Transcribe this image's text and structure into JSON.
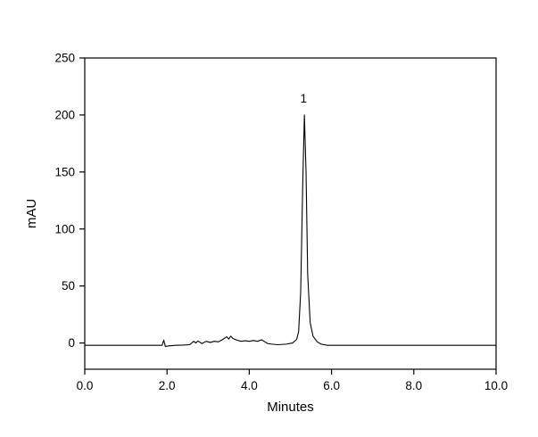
{
  "page": {
    "background": "#ffffff"
  },
  "chart_data": {
    "type": "line",
    "title": "",
    "xlabel": "Minutes",
    "ylabel": "mAU",
    "xlim": [
      0,
      10
    ],
    "ylim": [
      -23,
      250
    ],
    "grid": false,
    "legend": "none",
    "frame": true,
    "line_color": "#000000",
    "background_color": "#ffffff",
    "xticks": [
      {
        "value": 0,
        "label": "0.0"
      },
      {
        "value": 2,
        "label": "2.0"
      },
      {
        "value": 4,
        "label": "4.0"
      },
      {
        "value": 6,
        "label": "6.0"
      },
      {
        "value": 8,
        "label": "8.0"
      },
      {
        "value": 10,
        "label": "10.0"
      }
    ],
    "yticks": [
      {
        "value": 0,
        "label": "0"
      },
      {
        "value": 50,
        "label": "50"
      },
      {
        "value": 100,
        "label": "100"
      },
      {
        "value": 150,
        "label": "150"
      },
      {
        "value": 200,
        "label": "200"
      },
      {
        "value": 250,
        "label": "250"
      }
    ],
    "series": [
      {
        "name": "detector-signal",
        "x": [
          0.0,
          0.5,
          1.0,
          1.5,
          1.8,
          1.88,
          1.92,
          1.96,
          2.05,
          2.2,
          2.4,
          2.55,
          2.65,
          2.7,
          2.75,
          2.85,
          2.95,
          3.05,
          3.15,
          3.25,
          3.35,
          3.45,
          3.5,
          3.55,
          3.6,
          3.7,
          3.8,
          3.9,
          4.0,
          4.1,
          4.2,
          4.3,
          4.38,
          4.45,
          4.55,
          4.7,
          4.9,
          5.05,
          5.15,
          5.2,
          5.25,
          5.3,
          5.34,
          5.38,
          5.42,
          5.48,
          5.55,
          5.65,
          5.75,
          5.9,
          6.2,
          6.6,
          7.0,
          7.5,
          8.0,
          8.5,
          9.0,
          9.5,
          10.0
        ],
        "y": [
          -2,
          -2,
          -2,
          -2,
          -2,
          -2,
          2.5,
          -3,
          -2.5,
          -2,
          -1.8,
          -1.5,
          1.5,
          0,
          1.8,
          -0.5,
          1.5,
          0.5,
          1.5,
          1.0,
          3.0,
          5.5,
          3.5,
          6.0,
          4.0,
          2.5,
          1.5,
          2.0,
          1.5,
          2.2,
          1.5,
          2.8,
          1.0,
          -0.5,
          -1.0,
          -1.5,
          -1.0,
          0.0,
          3.0,
          10,
          45,
          140,
          200,
          150,
          60,
          18,
          6,
          1,
          -1,
          -2,
          -2,
          -2,
          -2,
          -2,
          -2,
          -2,
          -2,
          -2,
          -2
        ]
      }
    ],
    "annotations": [
      {
        "text": "1",
        "x": 5.32,
        "y": 211
      }
    ]
  }
}
